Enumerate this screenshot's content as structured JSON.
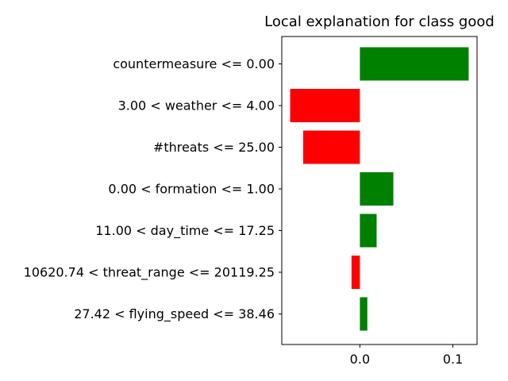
{
  "chart_data": {
    "type": "bar",
    "orientation": "horizontal",
    "title": "Local explanation for class good",
    "categories": [
      "countermeasure <= 0.00",
      "3.00 < weather <= 4.00",
      "#threats <= 25.00",
      "0.00 < formation <= 1.00",
      "11.00 < day_time <= 17.25",
      "10620.74 < threat_range <= 20119.25",
      "27.42 < flying_speed <= 38.46"
    ],
    "values": [
      0.117,
      -0.075,
      -0.061,
      0.036,
      0.018,
      -0.009,
      0.008
    ],
    "xlim": [
      -0.084,
      0.126
    ],
    "xticks": [
      0.0,
      0.1
    ],
    "xtick_labels": [
      "0.0",
      "0.1"
    ],
    "xlabel": "",
    "ylabel": "",
    "grid": false,
    "colors": {
      "positive": "#008000",
      "negative": "#ff0000",
      "axis": "#000000"
    }
  }
}
